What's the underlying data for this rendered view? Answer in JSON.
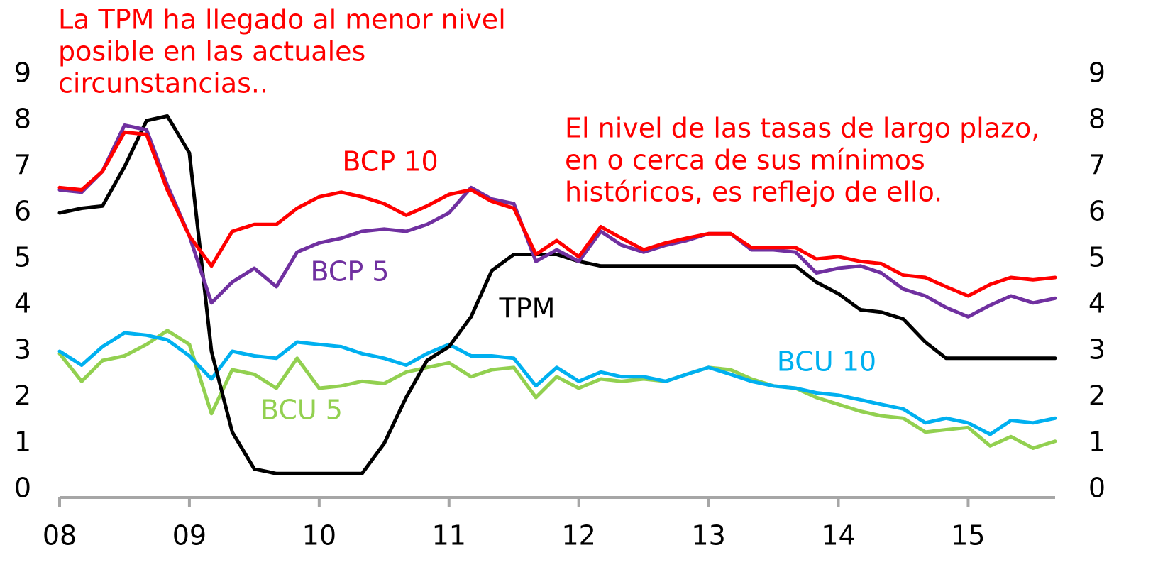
{
  "chart_data": {
    "type": "line",
    "annotations": [
      {
        "lines": [
          "La TPM ha llegado al menor nivel",
          "posible en las actuales",
          "circunstancias.."
        ],
        "color": "#ff0000"
      },
      {
        "lines": [
          "El nivel de las tasas de largo plazo,",
          "en o cerca de sus mínimos",
          "históricos, es reflejo de ello."
        ],
        "color": "#ff0000"
      }
    ],
    "x": [
      2008,
      2008.17,
      2008.33,
      2008.5,
      2008.67,
      2008.83,
      2009,
      2009.17,
      2009.33,
      2009.5,
      2009.67,
      2009.83,
      2010,
      2010.17,
      2010.33,
      2010.5,
      2010.67,
      2010.83,
      2011,
      2011.17,
      2011.33,
      2011.5,
      2011.67,
      2011.83,
      2012,
      2012.17,
      2012.33,
      2012.5,
      2012.67,
      2012.83,
      2013,
      2013.17,
      2013.33,
      2013.5,
      2013.67,
      2013.83,
      2014,
      2014.17,
      2014.33,
      2014.5,
      2014.67,
      2014.83,
      2015,
      2015.17,
      2015.33,
      2015.5,
      2015.67
    ],
    "series": [
      {
        "name": "BCU 5",
        "color": "#92d050",
        "values": [
          2.95,
          2.35,
          2.8,
          2.9,
          3.15,
          3.45,
          3.15,
          1.65,
          2.6,
          2.5,
          2.2,
          2.85,
          2.2,
          2.25,
          2.35,
          2.3,
          2.55,
          2.65,
          2.75,
          2.45,
          2.6,
          2.65,
          2.0,
          2.45,
          2.2,
          2.4,
          2.35,
          2.4,
          2.35,
          2.5,
          2.65,
          2.6,
          2.4,
          2.25,
          2.2,
          2.0,
          1.85,
          1.7,
          1.6,
          1.55,
          1.25,
          1.3,
          1.35,
          0.95,
          1.15,
          0.9,
          1.05
        ]
      },
      {
        "name": "BCU 10",
        "color": "#00b0f0",
        "values": [
          3.0,
          2.7,
          3.1,
          3.4,
          3.35,
          3.25,
          2.9,
          2.4,
          3.0,
          2.9,
          2.85,
          3.2,
          3.15,
          3.1,
          2.95,
          2.85,
          2.7,
          2.95,
          3.15,
          2.9,
          2.9,
          2.85,
          2.25,
          2.65,
          2.35,
          2.55,
          2.45,
          2.45,
          2.35,
          2.5,
          2.65,
          2.5,
          2.35,
          2.25,
          2.2,
          2.1,
          2.05,
          1.95,
          1.85,
          1.75,
          1.45,
          1.55,
          1.45,
          1.2,
          1.5,
          1.45,
          1.55
        ]
      },
      {
        "name": "TPM",
        "color": "#000000",
        "values": [
          6.0,
          6.1,
          6.15,
          7.0,
          8.0,
          8.1,
          7.3,
          3.0,
          1.25,
          0.45,
          0.35,
          0.35,
          0.35,
          0.35,
          0.35,
          1.0,
          2.0,
          2.8,
          3.1,
          3.75,
          4.75,
          5.1,
          5.1,
          5.1,
          4.95,
          4.85,
          4.85,
          4.85,
          4.85,
          4.85,
          4.85,
          4.85,
          4.85,
          4.85,
          4.85,
          4.5,
          4.25,
          3.9,
          3.85,
          3.7,
          3.2,
          2.85,
          2.85,
          2.85,
          2.85,
          2.85,
          2.85
        ]
      },
      {
        "name": "BCP 5",
        "color": "#7030a0",
        "values": [
          6.5,
          6.45,
          6.9,
          7.9,
          7.8,
          6.6,
          5.5,
          4.05,
          4.5,
          4.8,
          4.4,
          5.15,
          5.35,
          5.45,
          5.6,
          5.65,
          5.6,
          5.75,
          6.0,
          6.55,
          6.3,
          6.2,
          4.95,
          5.2,
          4.95,
          5.6,
          5.3,
          5.15,
          5.3,
          5.4,
          5.55,
          5.55,
          5.2,
          5.2,
          5.15,
          4.7,
          4.8,
          4.85,
          4.7,
          4.35,
          4.2,
          3.95,
          3.75,
          4.0,
          4.2,
          4.05,
          4.15
        ]
      },
      {
        "name": "BCP 10",
        "color": "#ff0000",
        "values": [
          6.55,
          6.5,
          6.9,
          7.75,
          7.7,
          6.5,
          5.5,
          4.85,
          5.6,
          5.75,
          5.75,
          6.1,
          6.35,
          6.45,
          6.35,
          6.2,
          5.95,
          6.15,
          6.4,
          6.5,
          6.25,
          6.1,
          5.1,
          5.4,
          5.05,
          5.7,
          5.45,
          5.2,
          5.35,
          5.45,
          5.55,
          5.55,
          5.25,
          5.25,
          5.25,
          5.0,
          5.05,
          4.95,
          4.9,
          4.65,
          4.6,
          4.4,
          4.2,
          4.45,
          4.6,
          4.55,
          4.6
        ]
      }
    ],
    "xlim": [
      2008,
      2015.67
    ],
    "xticks": [
      {
        "value": 2008,
        "label": "08"
      },
      {
        "value": 2009,
        "label": "09"
      },
      {
        "value": 2010,
        "label": "10"
      },
      {
        "value": 2011,
        "label": "11"
      },
      {
        "value": 2012,
        "label": "12"
      },
      {
        "value": 2013,
        "label": "13"
      },
      {
        "value": 2014,
        "label": "14"
      },
      {
        "value": 2015,
        "label": "15"
      }
    ],
    "ylim": [
      0,
      9
    ],
    "yticks": [
      0,
      1,
      2,
      3,
      4,
      5,
      6,
      7,
      8,
      9
    ],
    "y2lim": [
      0,
      9
    ],
    "y2ticks": [
      0,
      1,
      2,
      3,
      4,
      5,
      6,
      7,
      8,
      9
    ],
    "grid": false
  }
}
